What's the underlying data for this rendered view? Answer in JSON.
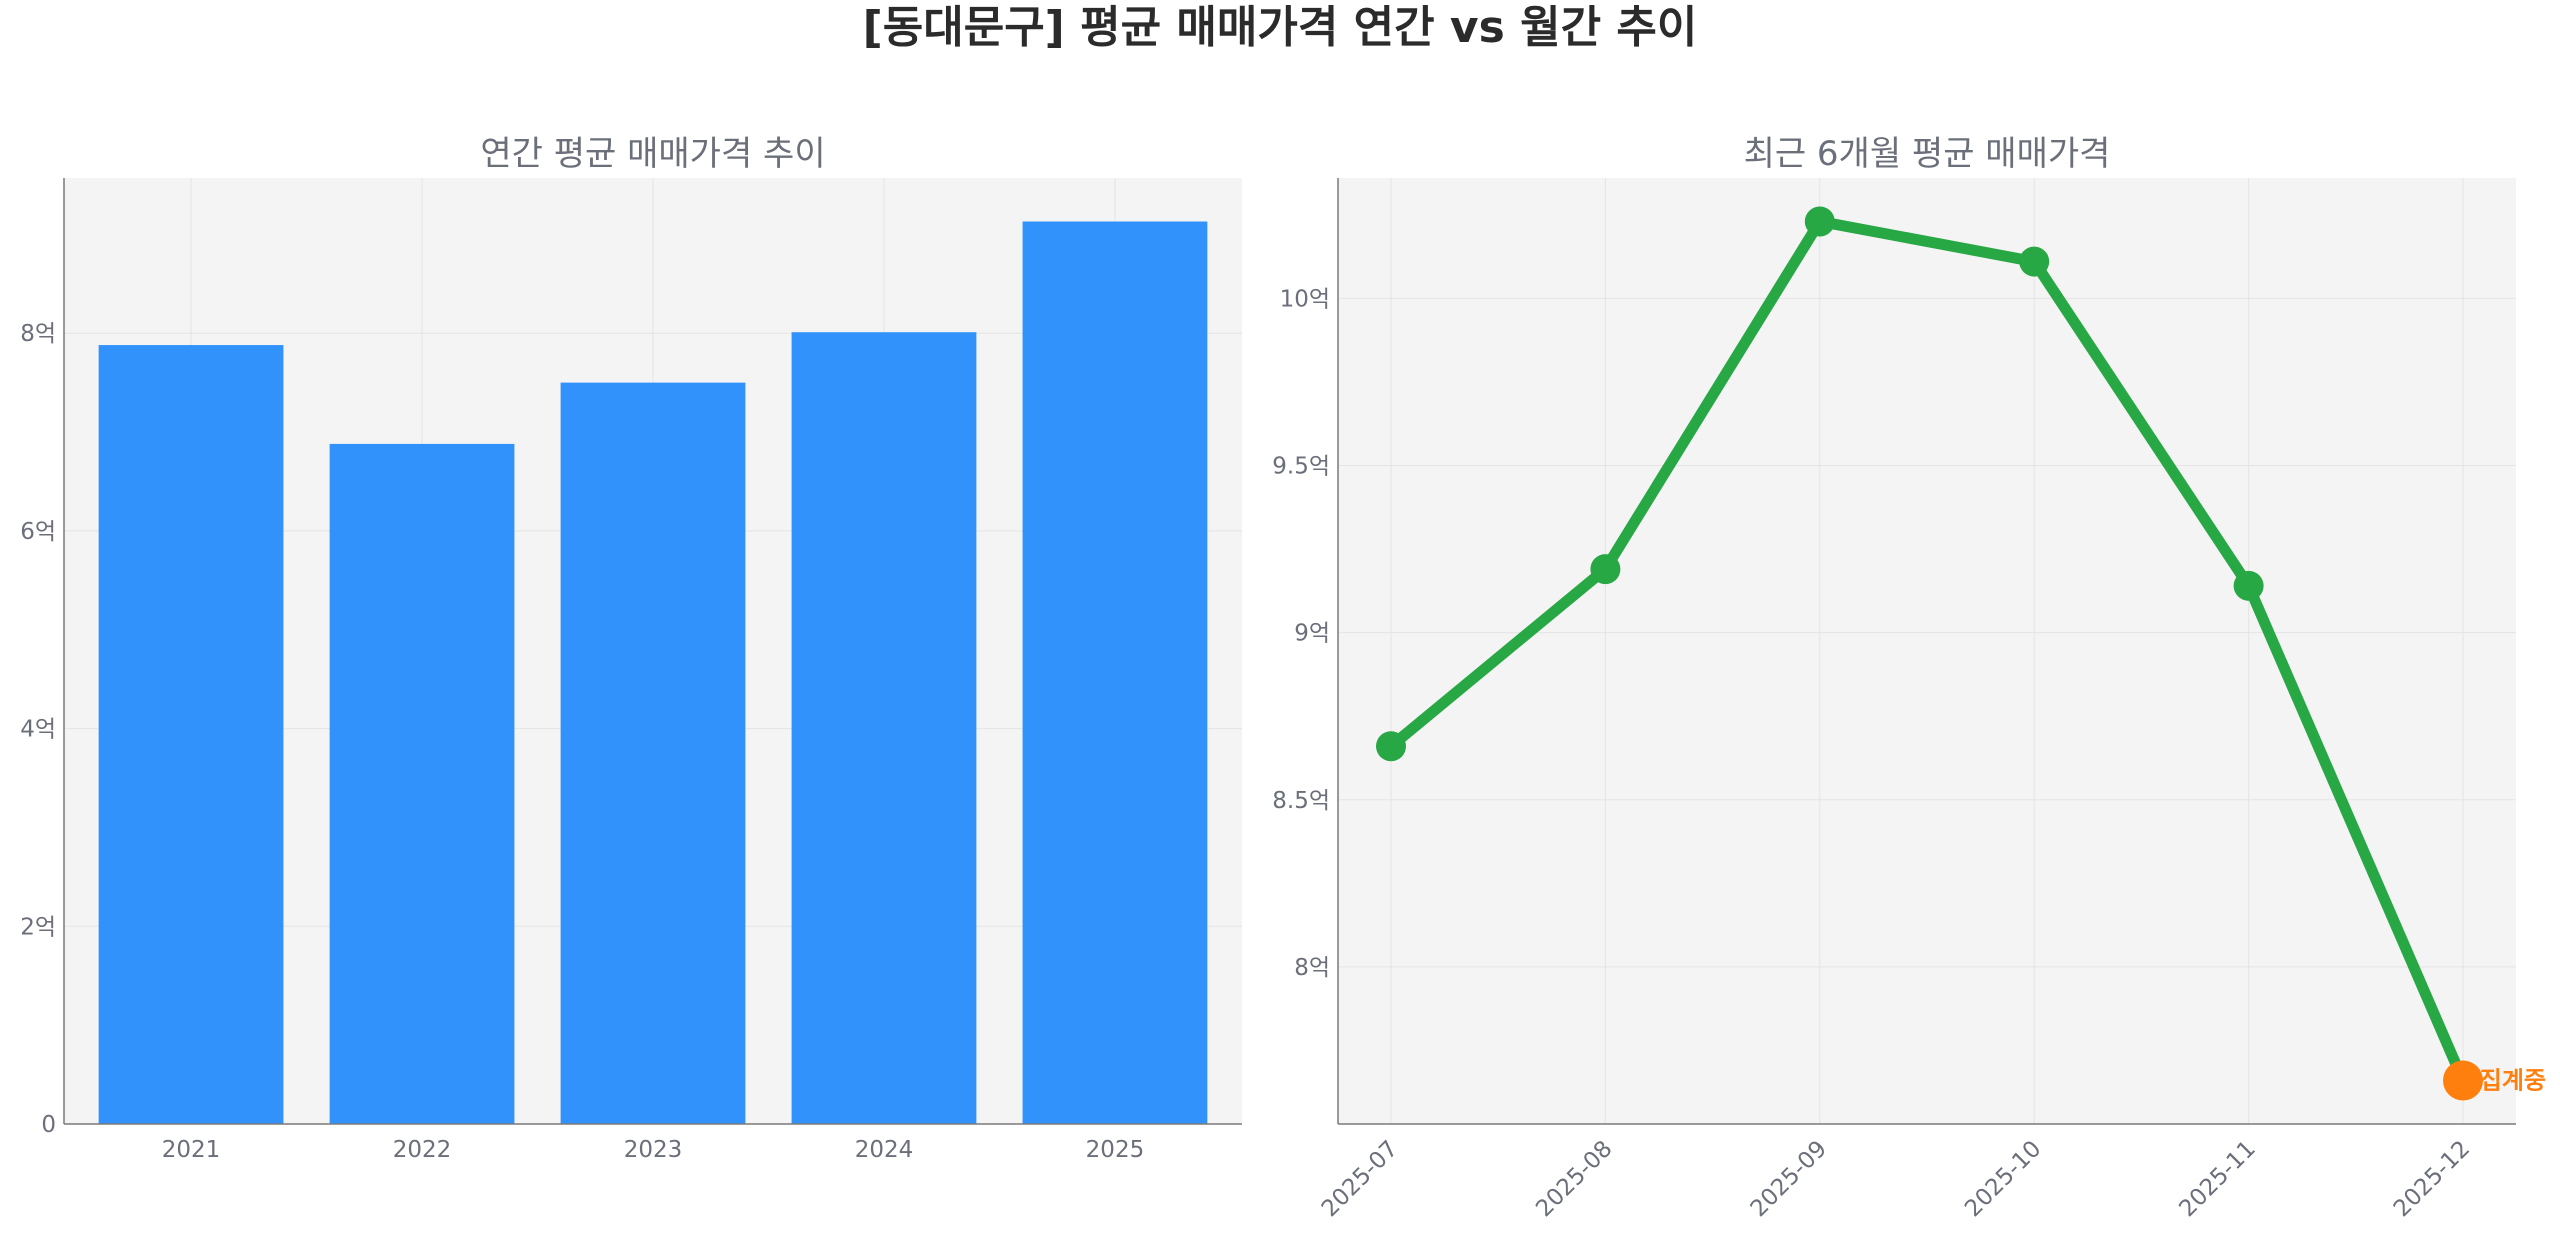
{
  "title": "[동대문구] 평균 매매가격 연간 vs 월간 추이",
  "colors": {
    "bar": "#3292fb",
    "line": "#28a745",
    "highlight": "#ff7f0e",
    "panel": "#f4f4f4",
    "grid": "#e4e4e4",
    "axis": "#7a7a7a"
  },
  "chart_data": [
    {
      "type": "bar",
      "title": "연간 평균 매매가격 추이",
      "categories": [
        "2021",
        "2022",
        "2023",
        "2024",
        "2025"
      ],
      "values": [
        7.88,
        6.88,
        7.5,
        8.01,
        9.13
      ],
      "ylim": [
        0,
        9.57
      ],
      "yticks": [
        0,
        2,
        4,
        6,
        8
      ],
      "ytick_labels": [
        "0",
        "2억",
        "4억",
        "6억",
        "8억"
      ],
      "grid": true
    },
    {
      "type": "line",
      "title": "최근 6개월 평균 매매가격",
      "categories": [
        "2025-07",
        "2025-08",
        "2025-09",
        "2025-10",
        "2025-11",
        "2025-12"
      ],
      "values": [
        8.66,
        9.19,
        10.23,
        10.11,
        9.14,
        7.66
      ],
      "ylim": [
        7.53,
        10.36
      ],
      "yticks": [
        8,
        8.5,
        9,
        9.5,
        10
      ],
      "ytick_labels": [
        "8억",
        "8.5억",
        "9억",
        "9.5억",
        "10억"
      ],
      "highlight_index": 5,
      "annotation": "집계중",
      "grid": true
    }
  ]
}
